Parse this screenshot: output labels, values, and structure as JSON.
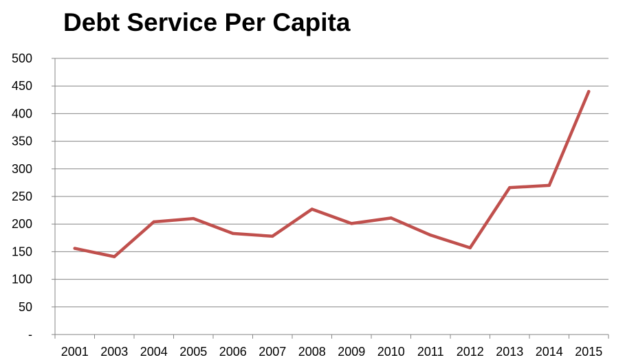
{
  "chart_data": {
    "type": "line",
    "title": "Debt Service Per Capita",
    "xlabel": "",
    "ylabel": "",
    "categories": [
      "2001",
      "2003",
      "2004",
      "2005",
      "2006",
      "2007",
      "2008",
      "2009",
      "2010",
      "2011",
      "2012",
      "2013",
      "2014",
      "2015"
    ],
    "series": [
      {
        "values": [
          156,
          141,
          204,
          210,
          183,
          178,
          227,
          201,
          211,
          180,
          157,
          266,
          270,
          440
        ]
      }
    ],
    "ylim": [
      0,
      500
    ],
    "yticks": [
      0,
      50,
      100,
      150,
      200,
      250,
      300,
      350,
      400,
      450,
      500
    ],
    "ytick_labels": [
      "-",
      "50",
      "100",
      "150",
      "200",
      "250",
      "300",
      "350",
      "400",
      "450",
      "500"
    ],
    "grid": true,
    "legend": "none",
    "colors": {
      "line": "#c0504d",
      "grid": "#868686",
      "axis": "#868686",
      "text": "#000000"
    }
  }
}
